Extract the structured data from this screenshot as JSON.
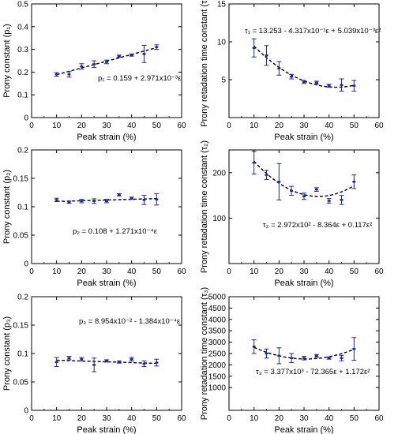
{
  "chart_data": [
    {
      "type": "scatter",
      "xlabel": "Peak strain (%)",
      "ylabel": "Prony constant (p₁)",
      "xlim": [
        0,
        60
      ],
      "ylim": [
        0,
        0.5
      ],
      "xticks": [
        0,
        10,
        20,
        30,
        40,
        50,
        60
      ],
      "yticks": [
        0,
        0.1,
        0.2,
        0.3,
        0.4,
        0.5
      ],
      "xtick_labels": [
        "0",
        "10",
        "20",
        "30",
        "40",
        "50",
        "60"
      ],
      "ytick_labels": [
        "0",
        "0.1",
        "0.2",
        "0.3",
        "0.4",
        "0.5"
      ],
      "x": [
        10,
        15,
        20,
        25,
        30,
        35,
        40,
        45,
        50
      ],
      "y": [
        0.19,
        0.19,
        0.225,
        0.235,
        0.245,
        0.27,
        0.275,
        0.28,
        0.31
      ],
      "err": [
        0.008,
        0.012,
        0.012,
        0.015,
        0.008,
        0.005,
        0.005,
        0.038,
        0.01
      ],
      "fit": {
        "a": 0.159,
        "b": 0.002971,
        "c": 0,
        "x_range": [
          10,
          50
        ]
      },
      "equation": "p₁ = 0.159 + 2.971x10⁻³ε",
      "equation_position": "lower-right",
      "grid": false,
      "series_color": "#1f2a8c"
    },
    {
      "type": "scatter",
      "xlabel": "Peak strain (%)",
      "ylabel": "Prony retadation time constant (τ₁)",
      "xlim": [
        0,
        60
      ],
      "ylim": [
        0,
        15
      ],
      "xticks": [
        0,
        10,
        20,
        30,
        40,
        50,
        60
      ],
      "yticks": [
        5,
        10,
        15
      ],
      "xtick_labels": [
        "0",
        "10",
        "20",
        "30",
        "40",
        "50",
        "60"
      ],
      "ytick_labels": [
        "5",
        "10",
        "15"
      ],
      "x": [
        10,
        15,
        20,
        25,
        30,
        35,
        40,
        45,
        50
      ],
      "y": [
        9.2,
        8.2,
        6.5,
        5.4,
        4.7,
        4.6,
        4.2,
        4.3,
        4.2
      ],
      "err": [
        1.2,
        1.3,
        0.9,
        0.3,
        0.2,
        0.2,
        0.2,
        0.8,
        0.7
      ],
      "fit": {
        "a": 13.253,
        "b": -0.4317,
        "c": 0.005039,
        "x_range": [
          10,
          50
        ]
      },
      "equation": "τ₁ = 13.253 - 4.317x10⁻¹ε + 5.039x10⁻³ε²",
      "equation_position": "top",
      "grid": false,
      "series_color": "#1f2a8c"
    },
    {
      "type": "scatter",
      "xlabel": "Peak strain (%)",
      "ylabel": "Prony constant (p₂)",
      "xlim": [
        0,
        60
      ],
      "ylim": [
        0,
        0.2
      ],
      "xticks": [
        0,
        10,
        20,
        30,
        40,
        50,
        60
      ],
      "yticks": [
        0,
        0.05,
        0.1,
        0.15,
        0.2
      ],
      "xtick_labels": [
        "0",
        "10",
        "20",
        "30",
        "40",
        "50",
        "60"
      ],
      "ytick_labels": [
        "0",
        "0.05",
        "0.1",
        "0.15",
        "0.2"
      ],
      "x": [
        10,
        15,
        20,
        25,
        30,
        35,
        40,
        45,
        50
      ],
      "y": [
        0.112,
        0.108,
        0.11,
        0.11,
        0.11,
        0.121,
        0.115,
        0.112,
        0.113
      ],
      "err": [
        0.003,
        0.002,
        0.003,
        0.004,
        0.003,
        0.002,
        0.002,
        0.008,
        0.01
      ],
      "fit": {
        "a": 0.108,
        "b": 0.0001271,
        "c": 0,
        "x_range": [
          10,
          50
        ]
      },
      "equation": "p₂ = 0.108 + 1.271x10⁻⁴ε",
      "equation_position": "lower-center",
      "grid": false,
      "series_color": "#1f2a8c"
    },
    {
      "type": "scatter",
      "xlabel": "Peak strain (%)",
      "ylabel": "Prony retadation time constant (τ₂)",
      "xlim": [
        0,
        60
      ],
      "ylim": [
        0,
        250
      ],
      "xticks": [
        0,
        10,
        20,
        30,
        40,
        50,
        60
      ],
      "yticks": [
        100,
        200
      ],
      "xtick_labels": [
        "0",
        "10",
        "20",
        "30",
        "40",
        "50",
        "60"
      ],
      "ytick_labels": [
        "100",
        "200"
      ],
      "x": [
        10,
        15,
        20,
        25,
        30,
        35,
        40,
        45,
        50
      ],
      "y": [
        222,
        195,
        180,
        160,
        148,
        163,
        138,
        140,
        180
      ],
      "err": [
        25,
        10,
        40,
        10,
        7,
        4,
        5,
        10,
        15
      ],
      "fit": {
        "a": 297.2,
        "b": -8.364,
        "c": 0.117,
        "x_range": [
          10,
          50
        ]
      },
      "equation": "τ₂ = 2.972x10² - 8.364ε + 0.117ε²",
      "equation_position": "lower-right",
      "grid": false,
      "series_color": "#1f2a8c"
    },
    {
      "type": "scatter",
      "xlabel": "Peak strain (%)",
      "ylabel": "Prony constant (p₃)",
      "xlim": [
        0,
        60
      ],
      "ylim": [
        0,
        0.2
      ],
      "xticks": [
        0,
        10,
        20,
        30,
        40,
        50,
        60
      ],
      "yticks": [
        0,
        0.05,
        0.1,
        0.15,
        0.2
      ],
      "xtick_labels": [
        "0",
        "10",
        "20",
        "30",
        "40",
        "50",
        "60"
      ],
      "ytick_labels": [
        "0",
        "0.05",
        "0.1",
        "0.15",
        "0.2"
      ],
      "x": [
        10,
        15,
        20,
        25,
        30,
        35,
        40,
        45,
        50
      ],
      "y": [
        0.085,
        0.092,
        0.09,
        0.08,
        0.087,
        0.085,
        0.09,
        0.082,
        0.084
      ],
      "err": [
        0.008,
        0.003,
        0.003,
        0.012,
        0.002,
        0.002,
        0.003,
        0.005,
        0.006
      ],
      "fit": {
        "a": 0.08954,
        "b": -0.0001384,
        "c": 0,
        "x_range": [
          10,
          50
        ]
      },
      "equation": "p₃ = 8.954x10⁻² - 1.384x10⁻⁴ε",
      "equation_position": "upper-center",
      "grid": false,
      "series_color": "#1f2a8c"
    },
    {
      "type": "scatter",
      "xlabel": "Peak strain (%)",
      "ylabel": "Prony retadation time constant (τ₃)",
      "xlim": [
        0,
        60
      ],
      "ylim": [
        0,
        5000
      ],
      "xticks": [
        0,
        10,
        20,
        30,
        40,
        50,
        60
      ],
      "yticks": [
        1000,
        1500,
        2000,
        2500,
        3000,
        3500,
        4000,
        4500,
        5000
      ],
      "xtick_labels": [
        "0",
        "10",
        "20",
        "30",
        "40",
        "50",
        "60"
      ],
      "ytick_labels": [
        "1000",
        "1500",
        "2000",
        "2500",
        "3000",
        "3500",
        "4000",
        "4500",
        "5000"
      ],
      "x": [
        10,
        15,
        20,
        25,
        30,
        35,
        40,
        45,
        50
      ],
      "y": [
        2800,
        2500,
        2400,
        2300,
        2300,
        2400,
        2300,
        2300,
        2700
      ],
      "err": [
        300,
        200,
        350,
        200,
        80,
        60,
        50,
        120,
        500
      ],
      "fit": {
        "a": 3377,
        "b": -72.365,
        "c": 1.172,
        "x_range": [
          10,
          50
        ]
      },
      "equation": "τ₃ = 3.377x10³ - 72.365ε + 1.172ε²",
      "equation_position": "lower-center",
      "grid": false,
      "series_color": "#1f2a8c"
    }
  ]
}
